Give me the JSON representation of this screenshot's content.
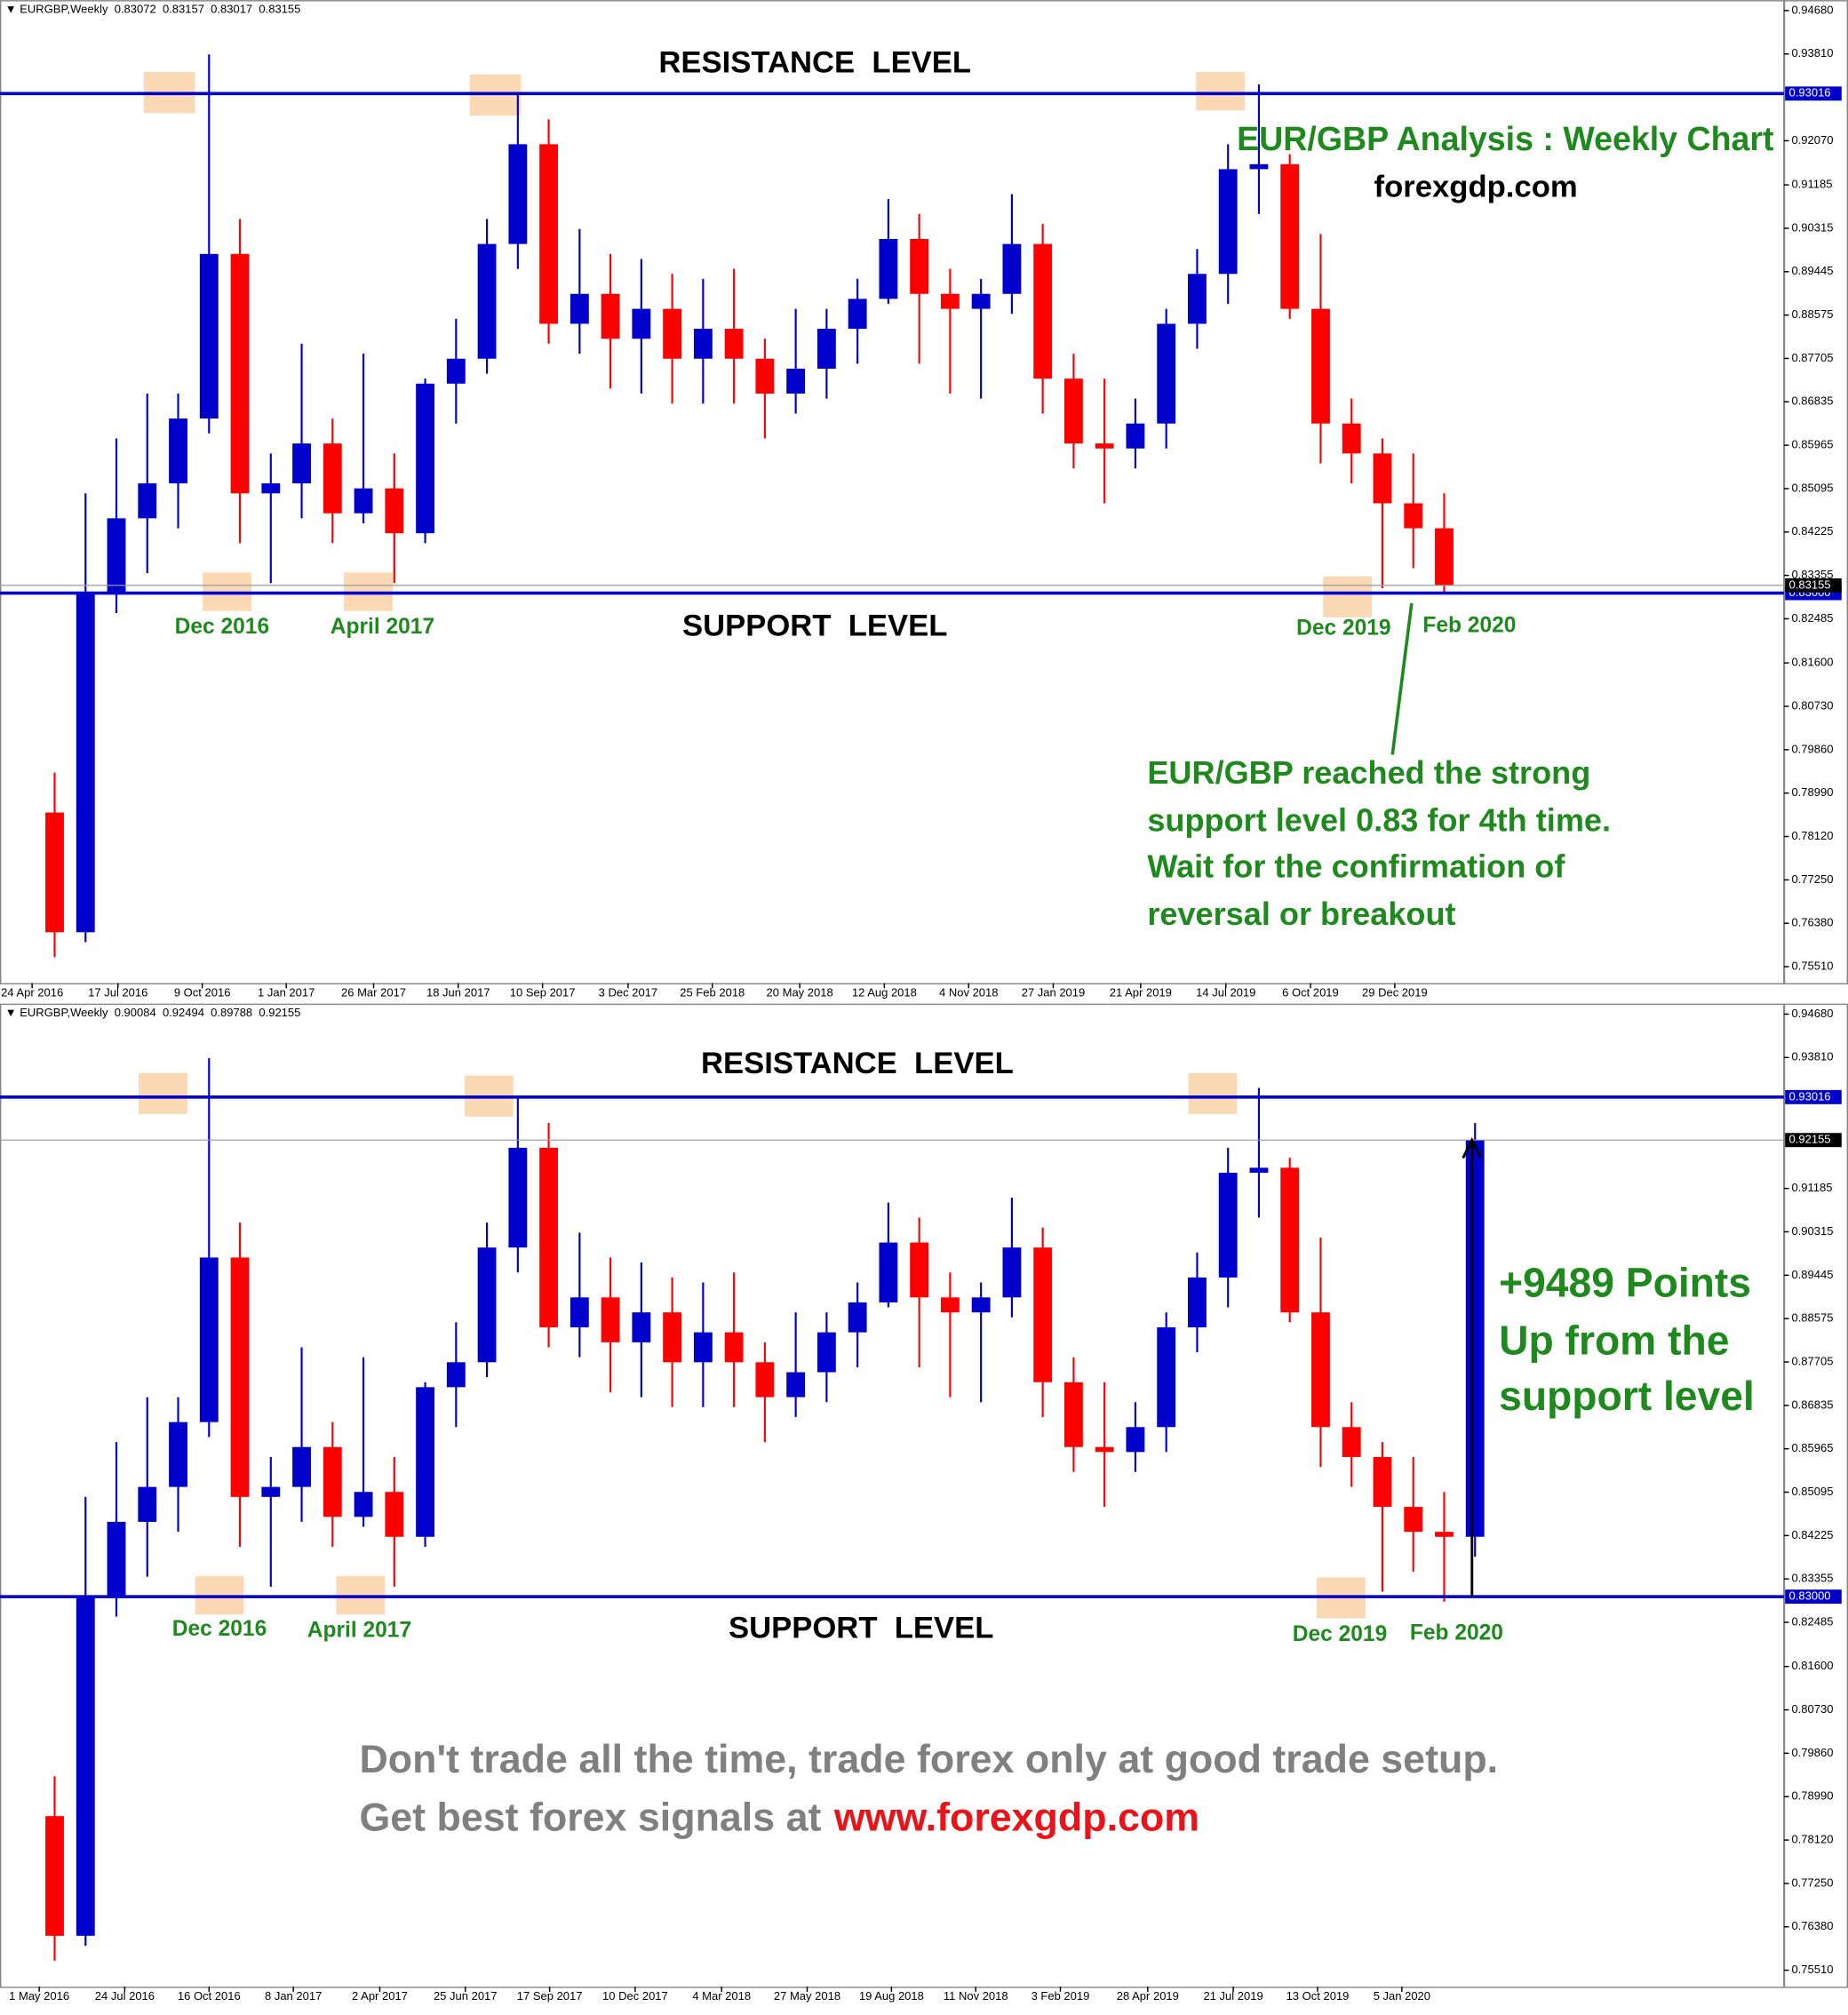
{
  "chart_data": [
    {
      "type": "candlestick",
      "symbol": "EURGBP,Weekly",
      "ohlc_header": [
        0.83072,
        0.83157,
        0.83017,
        0.83155
      ],
      "open": [
        0.786,
        0.762,
        0.83,
        0.845,
        0.852,
        0.865,
        0.898,
        0.85,
        0.852,
        0.86,
        0.846,
        0.851,
        0.842,
        0.872,
        0.877,
        0.9,
        0.92,
        0.884,
        0.89,
        0.881,
        0.887,
        0.877,
        0.883,
        0.877,
        0.87,
        0.875,
        0.883,
        0.889,
        0.901,
        0.89,
        0.887,
        0.89,
        0.9,
        0.873,
        0.86,
        0.859,
        0.864,
        0.884,
        0.894,
        0.915,
        0.916,
        0.887,
        0.864,
        0.858,
        0.848,
        0.843
      ],
      "high": [
        0.794,
        0.85,
        0.861,
        0.87,
        0.87,
        0.938,
        0.905,
        0.858,
        0.88,
        0.865,
        0.878,
        0.858,
        0.873,
        0.885,
        0.905,
        0.93,
        0.925,
        0.903,
        0.898,
        0.897,
        0.894,
        0.893,
        0.895,
        0.881,
        0.887,
        0.887,
        0.893,
        0.909,
        0.906,
        0.895,
        0.893,
        0.91,
        0.904,
        0.878,
        0.873,
        0.869,
        0.887,
        0.899,
        0.92,
        0.932,
        0.918,
        0.902,
        0.869,
        0.861,
        0.858,
        0.85
      ],
      "low": [
        0.757,
        0.76,
        0.826,
        0.834,
        0.843,
        0.862,
        0.84,
        0.832,
        0.845,
        0.84,
        0.844,
        0.832,
        0.84,
        0.864,
        0.874,
        0.895,
        0.88,
        0.878,
        0.871,
        0.87,
        0.868,
        0.868,
        0.868,
        0.861,
        0.866,
        0.869,
        0.876,
        0.888,
        0.876,
        0.87,
        0.869,
        0.886,
        0.866,
        0.855,
        0.848,
        0.855,
        0.859,
        0.879,
        0.888,
        0.906,
        0.885,
        0.856,
        0.852,
        0.831,
        0.835,
        0.83
      ],
      "close": [
        0.762,
        0.83,
        0.845,
        0.852,
        0.865,
        0.898,
        0.85,
        0.852,
        0.86,
        0.846,
        0.851,
        0.842,
        0.872,
        0.877,
        0.9,
        0.92,
        0.884,
        0.89,
        0.881,
        0.887,
        0.877,
        0.883,
        0.877,
        0.87,
        0.875,
        0.883,
        0.889,
        0.901,
        0.89,
        0.887,
        0.89,
        0.9,
        0.873,
        0.86,
        0.859,
        0.864,
        0.884,
        0.894,
        0.915,
        0.916,
        0.887,
        0.864,
        0.858,
        0.848,
        0.843,
        0.83155
      ],
      "up_color": "#0000cc",
      "down_color": "#ff0000",
      "level_color": "#0000cc",
      "xlim": [
        -1.77,
        56.0
      ],
      "xticks": [
        {
          "value": -0.73,
          "label": "24 Apr 2016"
        },
        {
          "value": 2.05,
          "label": "17 Jul 2016"
        },
        {
          "value": 4.78,
          "label": "9 Oct 2016"
        },
        {
          "value": 7.5,
          "label": "1 Jan 2017"
        },
        {
          "value": 10.33,
          "label": "26 Mar 2017"
        },
        {
          "value": 13.07,
          "label": "18 Jun 2017"
        },
        {
          "value": 15.8,
          "label": "10 Sep 2017"
        },
        {
          "value": 18.57,
          "label": "3 Dec 2017"
        },
        {
          "value": 21.3,
          "label": "25 Feb 2018"
        },
        {
          "value": 24.13,
          "label": "20 May 2018"
        },
        {
          "value": 26.87,
          "label": "12 Aug 2018"
        },
        {
          "value": 29.6,
          "label": "4 Nov 2018"
        },
        {
          "value": 32.34,
          "label": "27 Jan 2019"
        },
        {
          "value": 35.17,
          "label": "21 Apr 2019"
        },
        {
          "value": 37.93,
          "label": "14 Jul 2019"
        },
        {
          "value": 40.67,
          "label": "6 Oct 2019"
        },
        {
          "value": 43.4,
          "label": "29 Dec 2019"
        }
      ],
      "ylim": [
        0.7518,
        0.9489
      ],
      "yticks": [
        {
          "value": 0.9468,
          "label": "0.94680"
        },
        {
          "value": 0.9381,
          "label": "0.93810"
        },
        {
          "value": 0.9207,
          "label": "0.92070"
        },
        0.91185,
        0.90315,
        0.89445,
        0.88575,
        0.87705,
        0.86835,
        0.85965,
        0.85095,
        0.84225,
        0.83355,
        0.82485,
        {
          "value": 0.816,
          "label": "0.81600"
        },
        {
          "value": 0.8073,
          "label": "0.80730"
        },
        {
          "value": 0.7986,
          "label": "0.79860"
        },
        {
          "value": 0.7899,
          "label": "0.78990"
        },
        {
          "value": 0.7812,
          "label": "0.78120"
        },
        {
          "value": 0.7725,
          "label": "0.77250"
        },
        {
          "value": 0.7638,
          "label": "0.76380"
        },
        {
          "value": 0.7551,
          "label": "0.75510"
        }
      ],
      "resistance": 0.93016,
      "support": {
        "value": 0.83,
        "label": "0.83000"
      },
      "last_price": 0.83155,
      "annotations": {
        "resistance_label": "RESISTANCE  LEVEL",
        "support_label": "SUPPORT  LEVEL",
        "title": "EUR/GBP Analysis : Weekly Chart",
        "site": "forexgdp.com",
        "touches": [
          "Dec 2016",
          "April 2017",
          "Dec 2019",
          "Feb 2020"
        ],
        "note": [
          "EUR/GBP reached the strong",
          "support level 0.83 for 4th time.",
          "Wait for the confirmation of",
          "reversal or breakout"
        ]
      }
    },
    {
      "type": "candlestick",
      "symbol": "EURGBP,Weekly",
      "ohlc_header": [
        0.90084,
        0.92494,
        0.89788,
        0.92155
      ],
      "open": [
        0.786,
        0.762,
        0.83,
        0.845,
        0.852,
        0.865,
        0.898,
        0.85,
        0.852,
        0.86,
        0.846,
        0.851,
        0.842,
        0.872,
        0.877,
        0.9,
        0.92,
        0.884,
        0.89,
        0.881,
        0.887,
        0.877,
        0.883,
        0.877,
        0.87,
        0.875,
        0.883,
        0.889,
        0.901,
        0.89,
        0.887,
        0.89,
        0.9,
        0.873,
        0.86,
        0.859,
        0.864,
        0.884,
        0.894,
        0.915,
        0.916,
        0.887,
        0.864,
        0.858,
        0.848,
        0.843,
        0.842
      ],
      "high": [
        0.794,
        0.85,
        0.861,
        0.87,
        0.87,
        0.938,
        0.905,
        0.858,
        0.88,
        0.865,
        0.878,
        0.858,
        0.873,
        0.885,
        0.905,
        0.93,
        0.925,
        0.903,
        0.898,
        0.897,
        0.894,
        0.893,
        0.895,
        0.881,
        0.887,
        0.887,
        0.893,
        0.909,
        0.906,
        0.895,
        0.893,
        0.91,
        0.904,
        0.878,
        0.873,
        0.869,
        0.887,
        0.899,
        0.92,
        0.932,
        0.918,
        0.902,
        0.869,
        0.861,
        0.858,
        0.851,
        0.92494
      ],
      "low": [
        0.757,
        0.76,
        0.826,
        0.834,
        0.843,
        0.862,
        0.84,
        0.832,
        0.845,
        0.84,
        0.844,
        0.832,
        0.84,
        0.864,
        0.874,
        0.895,
        0.88,
        0.878,
        0.871,
        0.87,
        0.868,
        0.868,
        0.868,
        0.861,
        0.866,
        0.869,
        0.876,
        0.888,
        0.876,
        0.87,
        0.869,
        0.886,
        0.866,
        0.855,
        0.848,
        0.855,
        0.859,
        0.879,
        0.888,
        0.906,
        0.885,
        0.856,
        0.852,
        0.831,
        0.835,
        0.829,
        0.838
      ],
      "close": [
        0.762,
        0.83,
        0.845,
        0.852,
        0.865,
        0.898,
        0.85,
        0.852,
        0.86,
        0.846,
        0.851,
        0.842,
        0.872,
        0.877,
        0.9,
        0.92,
        0.884,
        0.89,
        0.881,
        0.887,
        0.877,
        0.883,
        0.877,
        0.87,
        0.875,
        0.883,
        0.889,
        0.901,
        0.89,
        0.887,
        0.89,
        0.9,
        0.873,
        0.86,
        0.859,
        0.864,
        0.884,
        0.894,
        0.915,
        0.916,
        0.887,
        0.864,
        0.858,
        0.848,
        0.843,
        0.842,
        0.92155
      ],
      "up_color": "#0000cc",
      "down_color": "#ff0000",
      "level_color": "#0000cc",
      "xlim": [
        -1.77,
        56.0
      ],
      "xticks": [
        {
          "value": -0.5,
          "label": "1 May 2016"
        },
        {
          "value": 2.27,
          "label": "24 Jul 2016"
        },
        {
          "value": 5.0,
          "label": "16 Oct 2016"
        },
        {
          "value": 7.73,
          "label": "8 Jan 2017"
        },
        {
          "value": 10.53,
          "label": "2 Apr 2017"
        },
        {
          "value": 13.3,
          "label": "25 Jun 2017"
        },
        {
          "value": 16.03,
          "label": "17 Sep 2017"
        },
        {
          "value": 18.8,
          "label": "10 Dec 2017"
        },
        {
          "value": 21.6,
          "label": "4 Mar 2018"
        },
        {
          "value": 24.37,
          "label": "27 May 2018"
        },
        {
          "value": 27.1,
          "label": "19 Aug 2018"
        },
        {
          "value": 29.83,
          "label": "11 Nov 2018"
        },
        {
          "value": 32.57,
          "label": "3 Feb 2019"
        },
        {
          "value": 35.4,
          "label": "28 Apr 2019"
        },
        {
          "value": 38.17,
          "label": "21 Jul 2019"
        },
        {
          "value": 40.9,
          "label": "13 Oct 2019"
        },
        {
          "value": 43.63,
          "label": "5 Jan 2020"
        }
      ],
      "ylim": [
        0.7518,
        0.9489
      ],
      "yticks": [
        {
          "value": 0.9468,
          "label": "0.94680"
        },
        {
          "value": 0.9381,
          "label": "0.93810"
        },
        0.91185,
        0.90315,
        0.89445,
        0.88575,
        0.87705,
        0.86835,
        0.85965,
        0.85095,
        0.84225,
        0.83355,
        0.82485,
        {
          "value": 0.816,
          "label": "0.81600"
        },
        {
          "value": 0.8073,
          "label": "0.80730"
        },
        {
          "value": 0.7986,
          "label": "0.79860"
        },
        {
          "value": 0.7899,
          "label": "0.78990"
        },
        {
          "value": 0.7812,
          "label": "0.78120"
        },
        {
          "value": 0.7725,
          "label": "0.77250"
        },
        {
          "value": 0.7638,
          "label": "0.76380"
        },
        {
          "value": 0.7551,
          "label": "0.75510"
        }
      ],
      "resistance": 0.93016,
      "support": {
        "value": 0.83,
        "label": "0.83000"
      },
      "last_price": 0.92155,
      "annotations": {
        "resistance_label": "RESISTANCE  LEVEL",
        "support_label": "SUPPORT  LEVEL",
        "touches": [
          "Dec 2016",
          "April 2017",
          "Dec 2019",
          "Feb 2020"
        ],
        "gain": [
          "+9489 Points",
          "Up from the",
          "support level"
        ]
      }
    }
  ],
  "footer": {
    "line1": "Don't trade all the time, trade forex only at good trade setup.",
    "line2": "Get best forex signals at",
    "link": "www.forexgdp.com"
  }
}
